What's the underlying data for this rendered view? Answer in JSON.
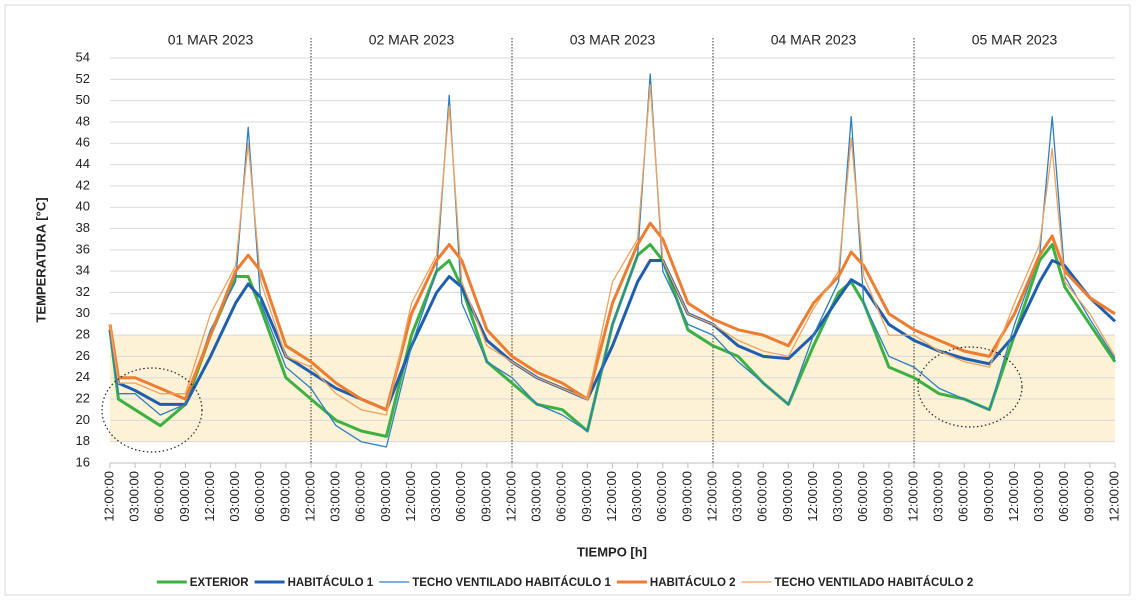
{
  "chart_data": {
    "type": "line",
    "y_label": "TEMPERATURA [°C]",
    "x_label": "TIEMPO [h]",
    "day_labels": [
      "01 MAR 2023",
      "02 MAR 2023",
      "03 MAR 2023",
      "04 MAR 2023",
      "05 MAR 2023"
    ],
    "x": [
      0,
      1,
      3,
      6,
      9,
      12,
      15,
      16.5,
      18,
      21,
      24,
      27,
      30,
      33,
      36,
      39,
      40.5,
      42,
      45,
      48,
      51,
      54,
      57,
      60,
      63,
      64.5,
      66,
      69,
      72,
      75,
      78,
      81,
      84,
      87,
      88.5,
      90,
      93,
      96,
      99,
      102,
      105,
      108,
      111,
      112.5,
      114,
      117,
      120
    ],
    "xlim": [
      0,
      120
    ],
    "xticks": [
      {
        "value": 0,
        "label": "12:00:00"
      },
      {
        "value": 3,
        "label": "03:00:00"
      },
      {
        "value": 6,
        "label": "06:00:00"
      },
      {
        "value": 9,
        "label": "09:00:00"
      },
      {
        "value": 12,
        "label": "12:00:00"
      },
      {
        "value": 15,
        "label": "03:00:00"
      },
      {
        "value": 18,
        "label": "06:00:00"
      },
      {
        "value": 21,
        "label": "09:00:00"
      },
      {
        "value": 24,
        "label": "12:00:00"
      },
      {
        "value": 27,
        "label": "03:00:00"
      },
      {
        "value": 30,
        "label": "06:00:00"
      },
      {
        "value": 33,
        "label": "09:00:00"
      },
      {
        "value": 36,
        "label": "12:00:00"
      },
      {
        "value": 39,
        "label": "03:00:00"
      },
      {
        "value": 42,
        "label": "06:00:00"
      },
      {
        "value": 45,
        "label": "09:00:00"
      },
      {
        "value": 48,
        "label": "12:00:00"
      },
      {
        "value": 51,
        "label": "03:00:00"
      },
      {
        "value": 54,
        "label": "06:00:00"
      },
      {
        "value": 57,
        "label": "09:00:00"
      },
      {
        "value": 60,
        "label": "12:00:00"
      },
      {
        "value": 63,
        "label": "03:00:00"
      },
      {
        "value": 66,
        "label": "06:00:00"
      },
      {
        "value": 69,
        "label": "09:00:00"
      },
      {
        "value": 72,
        "label": "12:00:00"
      },
      {
        "value": 75,
        "label": "03:00:00"
      },
      {
        "value": 78,
        "label": "06:00:00"
      },
      {
        "value": 81,
        "label": "09:00:00"
      },
      {
        "value": 84,
        "label": "12:00:00"
      },
      {
        "value": 87,
        "label": "03:00:00"
      },
      {
        "value": 90,
        "label": "06:00:00"
      },
      {
        "value": 93,
        "label": "09:00:00"
      },
      {
        "value": 96,
        "label": "12:00:00"
      },
      {
        "value": 99,
        "label": "03:00:00"
      },
      {
        "value": 102,
        "label": "06:00:00"
      },
      {
        "value": 105,
        "label": "09:00:00"
      },
      {
        "value": 108,
        "label": "12:00:00"
      },
      {
        "value": 111,
        "label": "03:00:00"
      },
      {
        "value": 114,
        "label": "06:00:00"
      },
      {
        "value": 117,
        "label": "09:00:00"
      },
      {
        "value": 120,
        "label": "12:00:00"
      }
    ],
    "ylim": [
      16,
      54
    ],
    "yticks": [
      16,
      18,
      20,
      22,
      24,
      26,
      28,
      30,
      32,
      34,
      36,
      38,
      40,
      42,
      44,
      46,
      48,
      50,
      52,
      54
    ],
    "grid": true,
    "comfort_band": [
      18,
      28
    ],
    "band_color": "#fdf2d6",
    "legend": "bottom",
    "series": [
      {
        "name": "EXTERIOR",
        "color": "#3cb043",
        "width": 3,
        "values": [
          28.5,
          22,
          21,
          19.5,
          21.5,
          28,
          33.5,
          33.5,
          30.5,
          24,
          22,
          20,
          19,
          18.5,
          28,
          34,
          35,
          32.5,
          25.5,
          23.5,
          21.5,
          21,
          19,
          29,
          35.5,
          36.5,
          35,
          28.5,
          27,
          26,
          23.5,
          21.5,
          27,
          32,
          33,
          31,
          25,
          24,
          22.5,
          22,
          21,
          28,
          35,
          36.5,
          32.5,
          29,
          25.5
        ]
      },
      {
        "name": "HABITÁCULO 1",
        "color": "#1f5fae",
        "width": 3,
        "values": [
          28.5,
          23.5,
          22.8,
          21.5,
          21.5,
          26,
          31,
          32.8,
          31.5,
          26,
          24.5,
          23,
          22,
          21,
          27,
          32,
          33.5,
          32.5,
          27.5,
          25.5,
          24,
          23,
          22,
          27,
          33,
          35,
          35,
          30,
          29,
          27,
          26,
          25.8,
          28,
          31.5,
          33.2,
          32.5,
          29,
          27.5,
          26.5,
          25.8,
          25.3,
          28,
          33,
          35,
          34.5,
          31.5,
          29.3
        ]
      },
      {
        "name": "TECHO VENTILADO HABITÁCULO 1",
        "color": "#2e7fc0",
        "width": 1.3,
        "values": [
          28,
          22.5,
          22.5,
          20.5,
          21.5,
          28.5,
          33,
          47.5,
          31,
          25,
          23,
          19.5,
          18,
          17.5,
          27,
          34,
          50.5,
          31,
          25.5,
          24,
          21.5,
          20.5,
          19,
          29,
          35.5,
          52.5,
          34,
          29,
          28,
          25.5,
          23.5,
          21.5,
          28,
          33,
          48.5,
          31,
          26,
          25,
          23,
          22,
          21,
          29,
          35.5,
          48.5,
          33.5,
          29.5,
          25.8
        ]
      },
      {
        "name": "HABITÁCULO 2",
        "color": "#ed7d31",
        "width": 3,
        "values": [
          29,
          24,
          24,
          23,
          22,
          28,
          34,
          35.5,
          34,
          27,
          25.5,
          23.5,
          22,
          21,
          30,
          35,
          36.5,
          35,
          28.5,
          26,
          24.5,
          23.5,
          22,
          31,
          36.5,
          38.5,
          37,
          31,
          29.5,
          28.5,
          28,
          27,
          31,
          33.5,
          35.8,
          34.5,
          30,
          28.5,
          27.5,
          26.5,
          26,
          30,
          35.5,
          37.3,
          34,
          31.5,
          30
        ]
      },
      {
        "name": "TECHO VENTILADO HABITÁCULO 2",
        "color": "#f0a25e",
        "width": 1.3,
        "values": [
          29,
          23.5,
          23.5,
          22.5,
          22.5,
          30,
          34.5,
          46,
          33,
          26,
          25,
          22.5,
          21,
          20.5,
          31,
          35.5,
          49.5,
          33,
          27,
          25.5,
          24,
          23,
          22,
          33,
          37,
          51.5,
          35,
          30,
          29,
          27.5,
          26.5,
          26,
          30.5,
          34,
          46.5,
          33.5,
          28,
          28,
          26.5,
          25.5,
          25,
          31,
          36.5,
          45.5,
          33,
          30,
          26
        ]
      }
    ]
  }
}
